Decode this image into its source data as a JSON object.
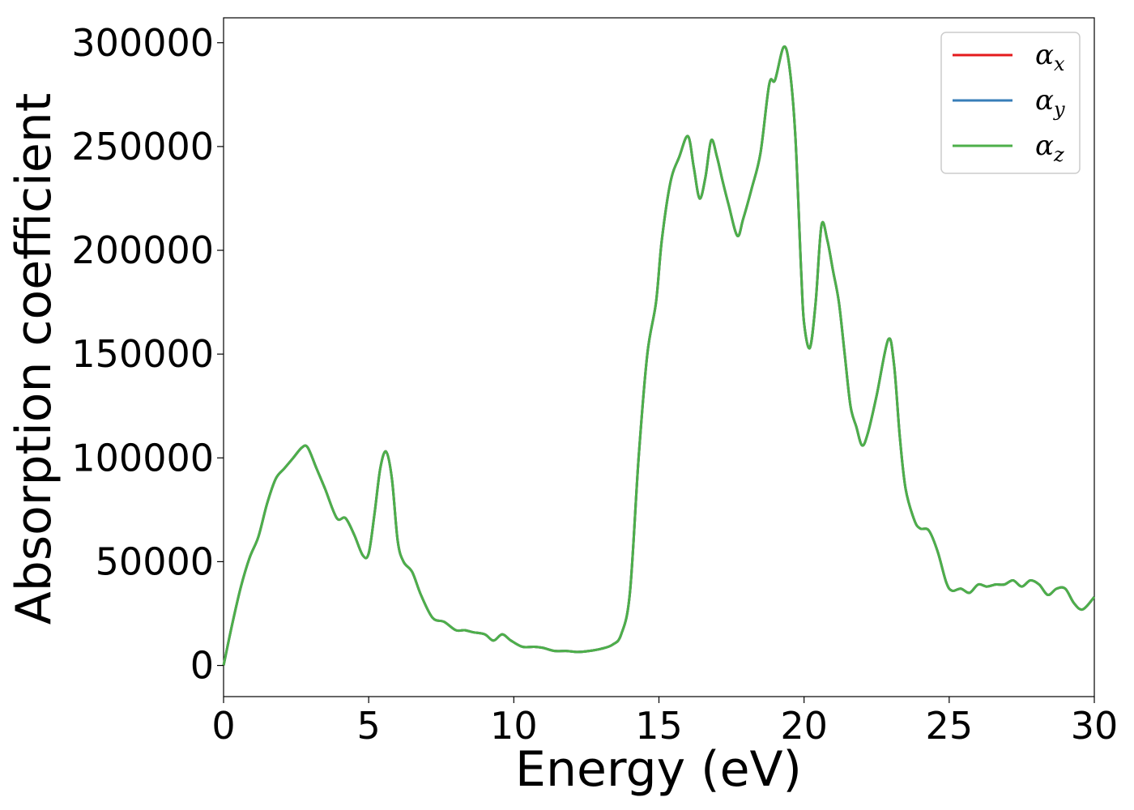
{
  "chart_data": {
    "type": "line",
    "xlabel": "Energy (eV)",
    "ylabel": "Absorption coefficient",
    "xlim": [
      0,
      30
    ],
    "ylim": [
      -15000,
      312000
    ],
    "x_ticks": [
      0,
      5,
      10,
      15,
      20,
      25,
      30
    ],
    "y_ticks": [
      0,
      50000,
      100000,
      150000,
      200000,
      250000,
      300000
    ],
    "grid": false,
    "legend_position": "top-right",
    "x": [
      0,
      0.3,
      0.6,
      0.9,
      1.2,
      1.5,
      1.8,
      2.1,
      2.4,
      2.7,
      2.9,
      3.2,
      3.5,
      3.9,
      4.2,
      4.5,
      4.8,
      5.0,
      5.2,
      5.4,
      5.6,
      5.8,
      6.0,
      6.2,
      6.5,
      6.8,
      7.2,
      7.6,
      8.0,
      8.3,
      8.6,
      9.0,
      9.3,
      9.6,
      9.9,
      10.3,
      10.7,
      11.0,
      11.4,
      11.8,
      12.2,
      12.6,
      13.0,
      13.4,
      13.7,
      14.0,
      14.3,
      14.6,
      14.9,
      15.1,
      15.4,
      15.7,
      16.0,
      16.2,
      16.4,
      16.6,
      16.8,
      17.0,
      17.2,
      17.4,
      17.7,
      17.9,
      18.2,
      18.5,
      18.8,
      19.0,
      19.3,
      19.5,
      19.7,
      19.9,
      20.0,
      20.2,
      20.4,
      20.6,
      20.8,
      21.0,
      21.2,
      21.4,
      21.6,
      21.8,
      22.0,
      22.2,
      22.5,
      22.9,
      23.1,
      23.3,
      23.5,
      23.8,
      24.0,
      24.3,
      24.6,
      24.9,
      25.1,
      25.4,
      25.7,
      26.0,
      26.3,
      26.6,
      26.9,
      27.2,
      27.5,
      27.8,
      28.1,
      28.4,
      28.7,
      29.0,
      29.3,
      29.6,
      30.0
    ],
    "series": [
      {
        "name": "α_x",
        "label_base": "α",
        "label_sub": "x",
        "color": "#e41a1c",
        "values": [
          0,
          20000,
          38000,
          52000,
          62000,
          78000,
          90000,
          95000,
          100000,
          105000,
          105000,
          95000,
          85000,
          71000,
          71000,
          63000,
          53000,
          54000,
          73000,
          95000,
          103000,
          90000,
          60000,
          50000,
          45000,
          34000,
          23000,
          21000,
          17000,
          17000,
          16000,
          15000,
          12000,
          15000,
          12000,
          9000,
          9000,
          8500,
          7000,
          7000,
          6500,
          7000,
          8000,
          10000,
          15000,
          35000,
          100000,
          150000,
          175000,
          205000,
          233000,
          245000,
          255000,
          240000,
          225000,
          235000,
          253000,
          245000,
          233000,
          222000,
          207000,
          215000,
          230000,
          247000,
          280000,
          282000,
          298000,
          288000,
          255000,
          190000,
          165000,
          153000,
          175000,
          212000,
          205000,
          190000,
          175000,
          150000,
          125000,
          115000,
          106000,
          112000,
          130000,
          157000,
          145000,
          110000,
          85000,
          70000,
          66000,
          65000,
          55000,
          40000,
          36000,
          37000,
          35000,
          39000,
          38000,
          39000,
          39000,
          41000,
          38000,
          41000,
          39000,
          34000,
          37000,
          37000,
          30000,
          27000,
          33000
        ]
      },
      {
        "name": "α_y",
        "label_base": "α",
        "label_sub": "y",
        "color": "#377eb8",
        "values": [
          0,
          20000,
          38000,
          52000,
          62000,
          78000,
          90000,
          95000,
          100000,
          105000,
          105000,
          95000,
          85000,
          71000,
          71000,
          63000,
          53000,
          54000,
          73000,
          95000,
          103000,
          90000,
          60000,
          50000,
          45000,
          34000,
          23000,
          21000,
          17000,
          17000,
          16000,
          15000,
          12000,
          15000,
          12000,
          9000,
          9000,
          8500,
          7000,
          7000,
          6500,
          7000,
          8000,
          10000,
          15000,
          35000,
          100000,
          150000,
          175000,
          205000,
          233000,
          245000,
          255000,
          240000,
          225000,
          235000,
          253000,
          245000,
          233000,
          222000,
          207000,
          215000,
          230000,
          247000,
          280000,
          282000,
          298000,
          288000,
          255000,
          190000,
          165000,
          153000,
          175000,
          212000,
          205000,
          190000,
          175000,
          150000,
          125000,
          115000,
          106000,
          112000,
          130000,
          157000,
          145000,
          110000,
          85000,
          70000,
          66000,
          65000,
          55000,
          40000,
          36000,
          37000,
          35000,
          39000,
          38000,
          39000,
          39000,
          41000,
          38000,
          41000,
          39000,
          34000,
          37000,
          37000,
          30000,
          27000,
          33000
        ]
      },
      {
        "name": "α_z",
        "label_base": "α",
        "label_sub": "z",
        "color": "#4daf4a",
        "values": [
          0,
          20000,
          38000,
          52000,
          62000,
          78000,
          90000,
          95000,
          100000,
          105000,
          105000,
          95000,
          85000,
          71000,
          71000,
          63000,
          53000,
          54000,
          73000,
          95000,
          103000,
          90000,
          60000,
          50000,
          45000,
          34000,
          23000,
          21000,
          17000,
          17000,
          16000,
          15000,
          12000,
          15000,
          12000,
          9000,
          9000,
          8500,
          7000,
          7000,
          6500,
          7000,
          8000,
          10000,
          15000,
          35000,
          100000,
          150000,
          175000,
          205000,
          233000,
          245000,
          255000,
          240000,
          225000,
          235000,
          253000,
          245000,
          233000,
          222000,
          207000,
          215000,
          230000,
          247000,
          280000,
          282000,
          298000,
          288000,
          255000,
          190000,
          165000,
          153000,
          175000,
          212000,
          205000,
          190000,
          175000,
          150000,
          125000,
          115000,
          106000,
          112000,
          130000,
          157000,
          145000,
          110000,
          85000,
          70000,
          66000,
          65000,
          55000,
          40000,
          36000,
          37000,
          35000,
          39000,
          38000,
          39000,
          39000,
          41000,
          38000,
          41000,
          39000,
          34000,
          37000,
          37000,
          30000,
          27000,
          33000
        ]
      }
    ]
  }
}
